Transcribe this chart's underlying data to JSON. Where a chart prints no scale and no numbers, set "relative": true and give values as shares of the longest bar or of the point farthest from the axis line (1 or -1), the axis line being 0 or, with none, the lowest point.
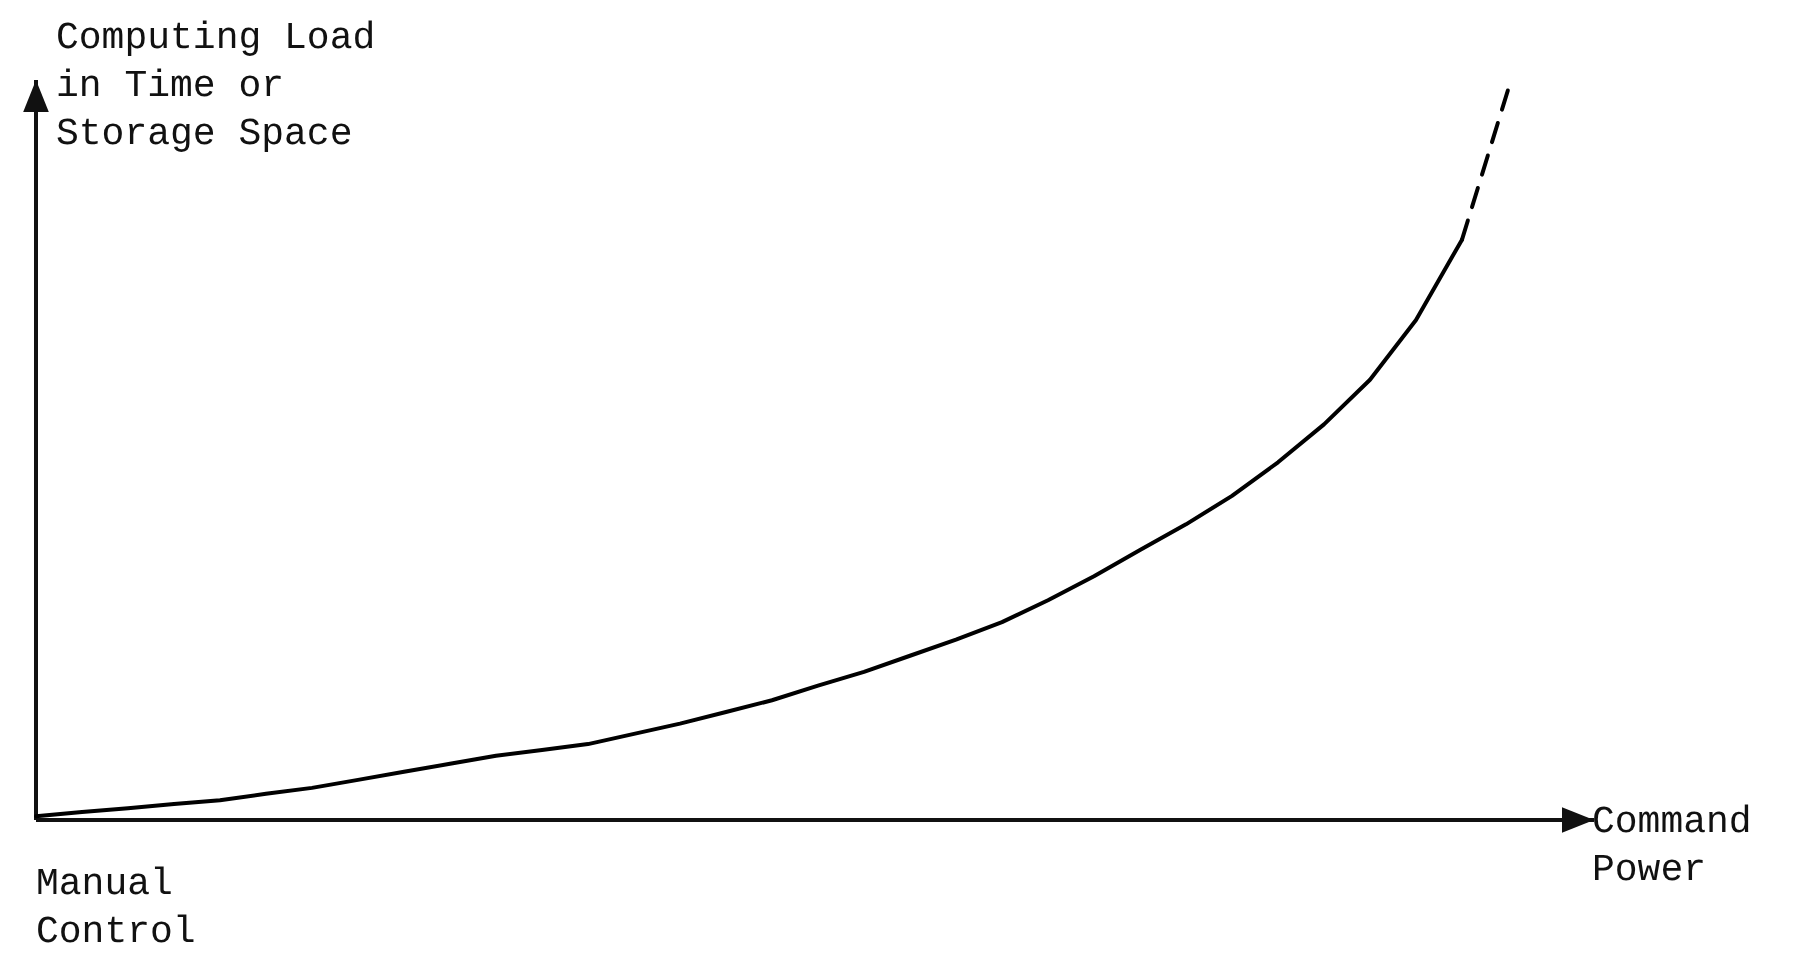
{
  "chart_data": {
    "type": "line",
    "relative": true,
    "ylabel": "Computing Load in Time or Storage Space",
    "xlabel": "Command Power",
    "annotations": [
      "Manual Control"
    ],
    "categories": [
      null,
      null,
      null,
      null,
      null,
      null,
      null,
      null,
      null,
      null,
      null,
      null,
      null,
      null,
      null,
      null,
      null,
      null,
      null,
      null,
      null,
      null,
      null,
      null,
      null,
      null,
      null,
      null,
      null,
      null,
      null,
      null,
      null
    ],
    "series": [
      {
        "color": "#000000",
        "line_style": "solid",
        "values": [
          0.005,
          0.011,
          0.016,
          0.022,
          0.027,
          0.036,
          0.044,
          0.055,
          0.066,
          0.077,
          0.088,
          0.096,
          0.104,
          0.118,
          0.132,
          0.148,
          0.164,
          0.184,
          0.203,
          0.225,
          0.247,
          0.271,
          0.301,
          0.334,
          0.37,
          0.405,
          0.444,
          0.49,
          0.542,
          0.603,
          0.685,
          0.795,
          null
        ]
      },
      {
        "color": "#000000",
        "line_style": "dashed",
        "values": [
          null,
          null,
          null,
          null,
          null,
          null,
          null,
          null,
          null,
          null,
          null,
          null,
          null,
          null,
          null,
          null,
          null,
          null,
          null,
          null,
          null,
          null,
          null,
          null,
          null,
          null,
          null,
          null,
          null,
          null,
          null,
          0.795,
          1.0
        ]
      }
    ]
  }
}
